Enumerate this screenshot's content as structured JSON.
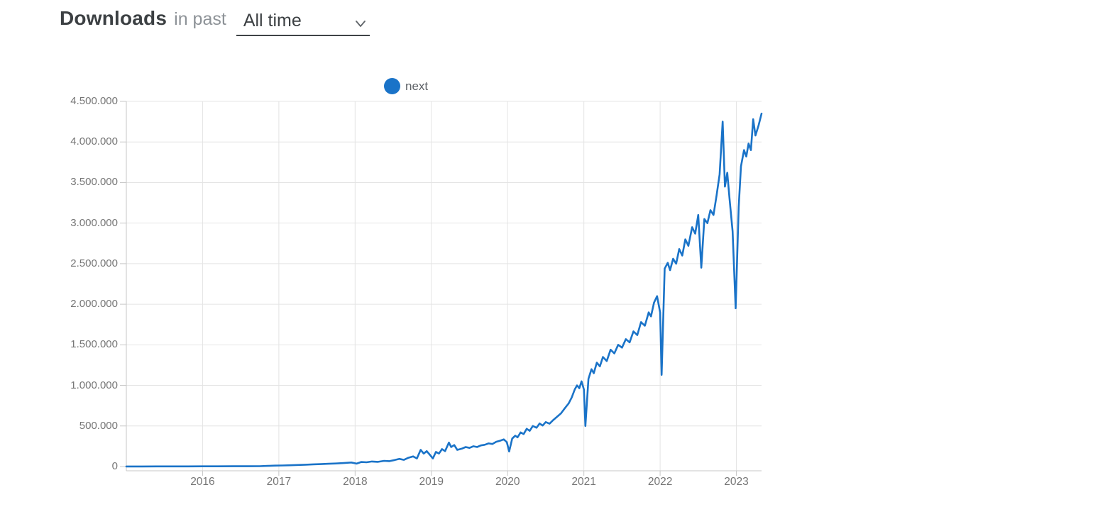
{
  "header": {
    "title": "Downloads",
    "subtitle": "in past",
    "range_select": {
      "value": "All time",
      "icon": "chevron-down-icon"
    }
  },
  "legend": {
    "items": [
      {
        "label": "next",
        "marker": "circle",
        "color": "#1a73c8"
      }
    ]
  },
  "colors": {
    "accent_blue": "#1a73c8",
    "axis_text": "#757575",
    "grid": "#e4e4e4",
    "axis_line": "#c7c7c7"
  },
  "chart_data": {
    "type": "line",
    "title": "Downloads in past All time",
    "legend_position": "top-center",
    "grid": true,
    "x_axis": {
      "label_type": "year",
      "range": [
        2015,
        2023.33
      ],
      "ticks": [
        2016,
        2017,
        2018,
        2019,
        2020,
        2021,
        2022,
        2023
      ]
    },
    "y_axis": {
      "range": [
        0,
        4500000
      ],
      "ticks": [
        {
          "value": 0,
          "label": "0"
        },
        {
          "value": 500000,
          "label": "500.000"
        },
        {
          "value": 1000000,
          "label": "1.000.000"
        },
        {
          "value": 1500000,
          "label": "1.500.000"
        },
        {
          "value": 2000000,
          "label": "2.000.000"
        },
        {
          "value": 2500000,
          "label": "2.500.000"
        },
        {
          "value": 3000000,
          "label": "3.000.000"
        },
        {
          "value": 3500000,
          "label": "3.500.000"
        },
        {
          "value": 4000000,
          "label": "4.000.000"
        },
        {
          "value": 4500000,
          "label": "4.500.000"
        }
      ]
    },
    "series": [
      {
        "name": "next",
        "color": "#1a73c8",
        "points": [
          [
            2015.0,
            1000
          ],
          [
            2015.2,
            1200
          ],
          [
            2015.4,
            1500
          ],
          [
            2015.6,
            1800
          ],
          [
            2015.8,
            2000
          ],
          [
            2016.0,
            2500
          ],
          [
            2016.2,
            2800
          ],
          [
            2016.4,
            3200
          ],
          [
            2016.6,
            3800
          ],
          [
            2016.75,
            4500
          ],
          [
            2016.85,
            8000
          ],
          [
            2016.95,
            11000
          ],
          [
            2017.05,
            13000
          ],
          [
            2017.15,
            16000
          ],
          [
            2017.25,
            19000
          ],
          [
            2017.35,
            23000
          ],
          [
            2017.45,
            27000
          ],
          [
            2017.55,
            30000
          ],
          [
            2017.65,
            34000
          ],
          [
            2017.75,
            38000
          ],
          [
            2017.85,
            43000
          ],
          [
            2017.95,
            50000
          ],
          [
            2018.02,
            36000
          ],
          [
            2018.08,
            56000
          ],
          [
            2018.15,
            52000
          ],
          [
            2018.22,
            62000
          ],
          [
            2018.3,
            58000
          ],
          [
            2018.38,
            70000
          ],
          [
            2018.45,
            66000
          ],
          [
            2018.52,
            80000
          ],
          [
            2018.58,
            94000
          ],
          [
            2018.64,
            82000
          ],
          [
            2018.7,
            108000
          ],
          [
            2018.76,
            125000
          ],
          [
            2018.81,
            100000
          ],
          [
            2018.86,
            205000
          ],
          [
            2018.9,
            160000
          ],
          [
            2018.94,
            190000
          ],
          [
            2018.98,
            145000
          ],
          [
            2019.02,
            100000
          ],
          [
            2019.06,
            180000
          ],
          [
            2019.1,
            160000
          ],
          [
            2019.14,
            215000
          ],
          [
            2019.18,
            190000
          ],
          [
            2019.23,
            295000
          ],
          [
            2019.26,
            240000
          ],
          [
            2019.3,
            265000
          ],
          [
            2019.34,
            205000
          ],
          [
            2019.4,
            220000
          ],
          [
            2019.45,
            240000
          ],
          [
            2019.5,
            230000
          ],
          [
            2019.55,
            250000
          ],
          [
            2019.6,
            240000
          ],
          [
            2019.65,
            260000
          ],
          [
            2019.7,
            268000
          ],
          [
            2019.75,
            285000
          ],
          [
            2019.8,
            278000
          ],
          [
            2019.85,
            305000
          ],
          [
            2019.9,
            318000
          ],
          [
            2019.95,
            335000
          ],
          [
            2019.99,
            300000
          ],
          [
            2020.02,
            185000
          ],
          [
            2020.06,
            345000
          ],
          [
            2020.1,
            380000
          ],
          [
            2020.13,
            360000
          ],
          [
            2020.17,
            420000
          ],
          [
            2020.21,
            400000
          ],
          [
            2020.25,
            465000
          ],
          [
            2020.29,
            440000
          ],
          [
            2020.33,
            500000
          ],
          [
            2020.38,
            478000
          ],
          [
            2020.42,
            530000
          ],
          [
            2020.46,
            505000
          ],
          [
            2020.5,
            548000
          ],
          [
            2020.55,
            528000
          ],
          [
            2020.6,
            575000
          ],
          [
            2020.65,
            615000
          ],
          [
            2020.7,
            655000
          ],
          [
            2020.75,
            718000
          ],
          [
            2020.8,
            778000
          ],
          [
            2020.84,
            850000
          ],
          [
            2020.88,
            950000
          ],
          [
            2020.91,
            1000000
          ],
          [
            2020.94,
            965000
          ],
          [
            2020.97,
            1050000
          ],
          [
            2021.0,
            950000
          ],
          [
            2021.02,
            500000
          ],
          [
            2021.06,
            1080000
          ],
          [
            2021.1,
            1200000
          ],
          [
            2021.13,
            1150000
          ],
          [
            2021.17,
            1280000
          ],
          [
            2021.21,
            1235000
          ],
          [
            2021.25,
            1350000
          ],
          [
            2021.3,
            1300000
          ],
          [
            2021.35,
            1440000
          ],
          [
            2021.4,
            1395000
          ],
          [
            2021.45,
            1500000
          ],
          [
            2021.5,
            1465000
          ],
          [
            2021.55,
            1570000
          ],
          [
            2021.6,
            1530000
          ],
          [
            2021.65,
            1665000
          ],
          [
            2021.7,
            1620000
          ],
          [
            2021.75,
            1780000
          ],
          [
            2021.8,
            1735000
          ],
          [
            2021.85,
            1900000
          ],
          [
            2021.88,
            1850000
          ],
          [
            2021.92,
            2020000
          ],
          [
            2021.96,
            2100000
          ],
          [
            2022.0,
            1900000
          ],
          [
            2022.02,
            1130000
          ],
          [
            2022.06,
            2440000
          ],
          [
            2022.1,
            2510000
          ],
          [
            2022.13,
            2420000
          ],
          [
            2022.17,
            2560000
          ],
          [
            2022.21,
            2500000
          ],
          [
            2022.25,
            2680000
          ],
          [
            2022.29,
            2600000
          ],
          [
            2022.33,
            2800000
          ],
          [
            2022.37,
            2720000
          ],
          [
            2022.42,
            2950000
          ],
          [
            2022.46,
            2870000
          ],
          [
            2022.5,
            3100000
          ],
          [
            2022.54,
            2450000
          ],
          [
            2022.58,
            3050000
          ],
          [
            2022.62,
            3000000
          ],
          [
            2022.66,
            3160000
          ],
          [
            2022.7,
            3100000
          ],
          [
            2022.74,
            3340000
          ],
          [
            2022.78,
            3600000
          ],
          [
            2022.82,
            4250000
          ],
          [
            2022.85,
            3450000
          ],
          [
            2022.88,
            3620000
          ],
          [
            2022.91,
            3300000
          ],
          [
            2022.95,
            2900000
          ],
          [
            2022.99,
            1950000
          ],
          [
            2023.03,
            3200000
          ],
          [
            2023.06,
            3700000
          ],
          [
            2023.1,
            3900000
          ],
          [
            2023.13,
            3820000
          ],
          [
            2023.16,
            3980000
          ],
          [
            2023.19,
            3900000
          ],
          [
            2023.22,
            4280000
          ],
          [
            2023.25,
            4080000
          ],
          [
            2023.29,
            4200000
          ],
          [
            2023.33,
            4350000
          ]
        ]
      }
    ]
  }
}
